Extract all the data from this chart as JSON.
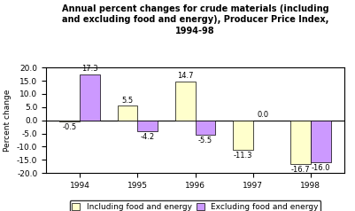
{
  "title_line1": "Annual percent changes for crude materials (including",
  "title_line2": "and excluding food and energy), Producer Price Index,",
  "title_line3": "1994-98",
  "years": [
    "1994",
    "1995",
    "1996",
    "1997",
    "1998"
  ],
  "including": [
    -0.5,
    5.5,
    14.7,
    -11.3,
    -16.7
  ],
  "excluding": [
    17.3,
    -4.2,
    -5.5,
    0.0,
    -16.0
  ],
  "color_including": "#ffffcc",
  "color_excluding": "#cc99ff",
  "ylabel": "Percent change",
  "ylim": [
    -20.0,
    20.0
  ],
  "yticks": [
    -20.0,
    -15.0,
    -10.0,
    -5.0,
    0.0,
    5.0,
    10.0,
    15.0,
    20.0
  ],
  "legend_including": "Including food and energy",
  "legend_excluding": "Excluding food and energy",
  "bar_width": 0.35,
  "background_color": "#ffffff",
  "title_fontsize": 7.0,
  "axis_fontsize": 6.5,
  "label_fontsize": 6.0,
  "legend_fontsize": 6.5
}
